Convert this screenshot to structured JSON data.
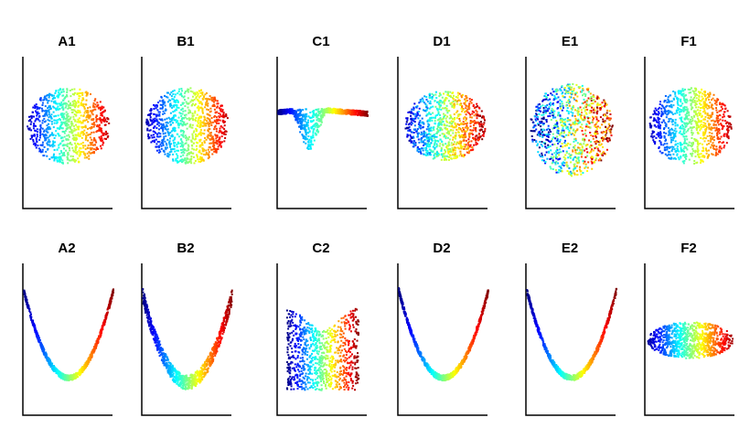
{
  "chart_data": {
    "type": "scatter",
    "colormap": "jet",
    "axes_visible": "left and bottom spines only, no ticks",
    "grid": false,
    "panels": [
      {
        "title": "A1",
        "shape": "disk",
        "color_by": "x"
      },
      {
        "title": "B1",
        "shape": "disk",
        "color_by": "x"
      },
      {
        "title": "C1",
        "shape": "saddle",
        "color_by": "x"
      },
      {
        "title": "D1",
        "shape": "blob",
        "color_by": "x"
      },
      {
        "title": "E1",
        "shape": "cup",
        "color_by": "x"
      },
      {
        "title": "F1",
        "shape": "disk",
        "color_by": "x"
      },
      {
        "title": "A2",
        "shape": "parabola",
        "color_by": "x"
      },
      {
        "title": "B2",
        "shape": "parabola-wide",
        "color_by": "x"
      },
      {
        "title": "C2",
        "shape": "funnel",
        "color_by": "x"
      },
      {
        "title": "D2",
        "shape": "parabola",
        "color_by": "x"
      },
      {
        "title": "E2",
        "shape": "parabola",
        "color_by": "x"
      },
      {
        "title": "F2",
        "shape": "ellipse",
        "color_by": "x"
      }
    ]
  }
}
